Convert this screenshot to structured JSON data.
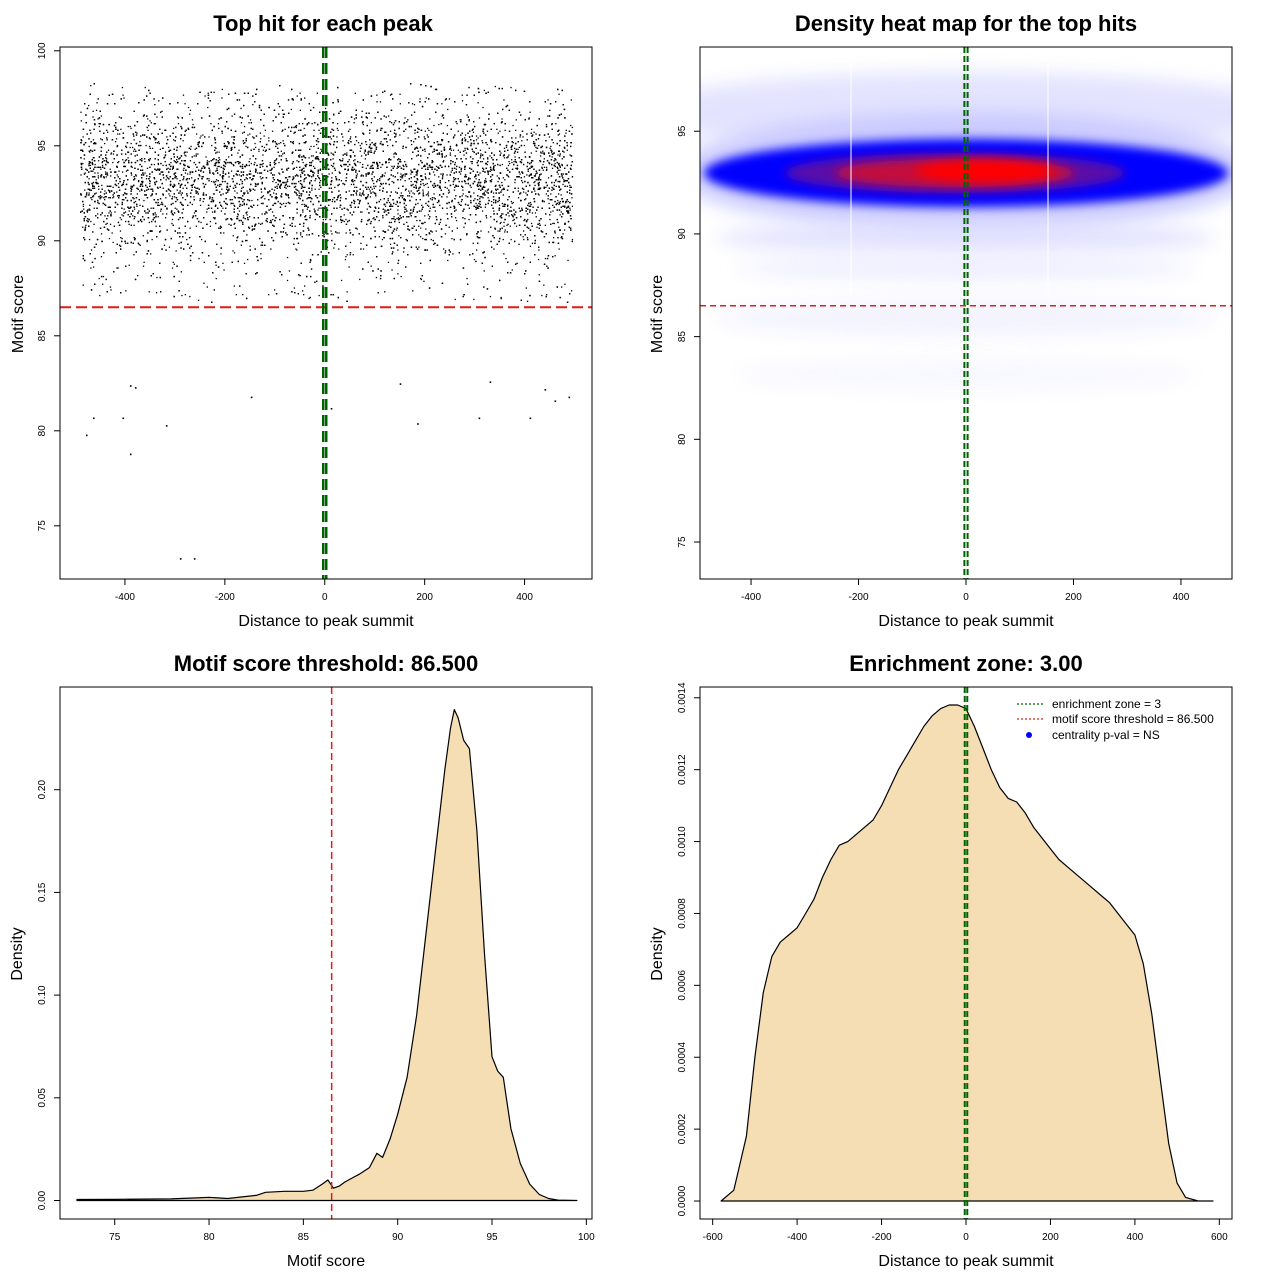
{
  "colors": {
    "threshold_line": "#e41a1c",
    "zone_line": "#006400",
    "density_fill": "#f5deb3",
    "heat_low": "#ffffff",
    "heat_mid": "#0000ff",
    "heat_high": "#ff0000",
    "point": "#000000",
    "legend_point": "#0000ff"
  },
  "chart_data": [
    {
      "id": "scatter",
      "type": "scatter",
      "title": "Top hit for each peak",
      "xlabel": "Distance to peak summit",
      "ylabel": "Motif score",
      "xlim": [
        -530,
        535
      ],
      "ylim": [
        72.2,
        100.2
      ],
      "xticks": [
        -400,
        -200,
        0,
        200,
        400
      ],
      "yticks": [
        75,
        80,
        85,
        90,
        95,
        100
      ],
      "x_range": [
        -490,
        495
      ],
      "score_center": 93.2,
      "score_spread": 1.8,
      "point_count": 9000,
      "outlier_points": [
        {
          "x": -290,
          "y": 73.3
        },
        {
          "x": -262,
          "y": 73.3
        },
        {
          "x": -390,
          "y": 78.8
        },
        {
          "x": -478,
          "y": 79.8
        },
        {
          "x": -318,
          "y": 80.3
        },
        {
          "x": -464,
          "y": 80.7
        },
        {
          "x": -405,
          "y": 80.7
        },
        {
          "x": 185,
          "y": 80.4
        },
        {
          "x": 308,
          "y": 80.7
        },
        {
          "x": 410,
          "y": 80.7
        },
        {
          "x": 460,
          "y": 81.6
        },
        {
          "x": 488,
          "y": 81.8
        },
        {
          "x": -148,
          "y": 81.8
        },
        {
          "x": 12,
          "y": 81.2
        },
        {
          "x": -390,
          "y": 82.4
        },
        {
          "x": -380,
          "y": 82.3
        },
        {
          "x": 150,
          "y": 82.5
        },
        {
          "x": 330,
          "y": 82.6
        },
        {
          "x": 440,
          "y": 82.2
        }
      ],
      "threshold": 86.5,
      "zone": [
        -3,
        3
      ]
    },
    {
      "id": "heatmap",
      "type": "heatmap",
      "title": "Density heat map for the top hits",
      "xlabel": "Distance to peak summit",
      "ylabel": "Motif score",
      "xlim": [
        -495,
        495
      ],
      "ylim": [
        73.2,
        99.1
      ],
      "xticks": [
        -400,
        -200,
        0,
        200,
        400
      ],
      "yticks": [
        75,
        80,
        85,
        90,
        95
      ],
      "density_center": {
        "x": 30,
        "y": 93.1
      },
      "threshold": 86.5,
      "zone": [
        -3,
        3
      ]
    },
    {
      "id": "score_density",
      "type": "area",
      "title": "Motif score threshold: 86.500",
      "xlabel": "Motif score",
      "ylabel": "Density",
      "xlim": [
        72.1,
        100.3
      ],
      "ylim": [
        -0.009,
        0.25
      ],
      "xticks": [
        75,
        80,
        85,
        90,
        95,
        100
      ],
      "yticks": [
        0.0,
        0.05,
        0.1,
        0.15,
        0.2
      ],
      "ytick_labels": [
        "0.00",
        "0.05",
        "0.10",
        "0.15",
        "0.20"
      ],
      "x": [
        73.0,
        75.0,
        78.0,
        80.0,
        81.0,
        82.0,
        82.5,
        83.0,
        84.0,
        85.0,
        85.5,
        86.0,
        86.3,
        86.6,
        86.9,
        87.2,
        87.6,
        88.0,
        88.5,
        88.9,
        89.2,
        89.6,
        90.0,
        90.5,
        91.0,
        91.5,
        92.0,
        92.5,
        92.8,
        93.0,
        93.2,
        93.5,
        93.8,
        94.2,
        94.6,
        95.0,
        95.3,
        95.6,
        96.0,
        96.5,
        97.0,
        97.5,
        98.0,
        98.5,
        99.5
      ],
      "y": [
        0.0005,
        0.0006,
        0.0008,
        0.0015,
        0.001,
        0.002,
        0.0025,
        0.004,
        0.0045,
        0.0045,
        0.005,
        0.008,
        0.01,
        0.006,
        0.007,
        0.009,
        0.011,
        0.013,
        0.016,
        0.023,
        0.021,
        0.03,
        0.042,
        0.06,
        0.09,
        0.13,
        0.17,
        0.21,
        0.23,
        0.239,
        0.235,
        0.224,
        0.22,
        0.18,
        0.12,
        0.07,
        0.063,
        0.06,
        0.035,
        0.018,
        0.008,
        0.003,
        0.001,
        0.0002,
        0.0
      ],
      "threshold": 86.5
    },
    {
      "id": "distance_density",
      "type": "area",
      "title": "Enrichment zone: 3.00",
      "xlabel": "Distance to peak summit",
      "ylabel": "Density",
      "xlim": [
        -630,
        630
      ],
      "ylim": [
        -5e-05,
        0.00143
      ],
      "xticks": [
        -600,
        -400,
        -200,
        0,
        200,
        400,
        600
      ],
      "yticks": [
        0.0,
        0.0002,
        0.0004,
        0.0006,
        0.0008,
        0.001,
        0.0012,
        0.0014
      ],
      "ytick_labels": [
        "0.0000",
        "0.0002",
        "0.0004",
        "0.0006",
        "0.0008",
        "0.0010",
        "0.0012",
        "0.0014"
      ],
      "x": [
        -580,
        -550,
        -520,
        -500,
        -480,
        -460,
        -440,
        -420,
        -400,
        -380,
        -360,
        -340,
        -320,
        -300,
        -280,
        -260,
        -240,
        -220,
        -200,
        -180,
        -160,
        -140,
        -120,
        -100,
        -80,
        -60,
        -40,
        -20,
        0,
        20,
        40,
        60,
        80,
        100,
        120,
        140,
        160,
        180,
        200,
        220,
        240,
        260,
        280,
        300,
        320,
        340,
        360,
        380,
        400,
        420,
        440,
        460,
        480,
        500,
        520,
        550,
        585
      ],
      "y": [
        0.0,
        3e-05,
        0.00018,
        0.0004,
        0.00058,
        0.00068,
        0.00072,
        0.00074,
        0.00076,
        0.0008,
        0.00084,
        0.0009,
        0.00095,
        0.00099,
        0.001,
        0.00102,
        0.00104,
        0.00106,
        0.0011,
        0.00115,
        0.0012,
        0.00124,
        0.00128,
        0.00132,
        0.00135,
        0.00137,
        0.00138,
        0.00138,
        0.00137,
        0.00132,
        0.00126,
        0.0012,
        0.00115,
        0.00112,
        0.00111,
        0.00108,
        0.00104,
        0.00101,
        0.00098,
        0.00095,
        0.00093,
        0.00091,
        0.00089,
        0.00087,
        0.00085,
        0.00083,
        0.0008,
        0.00077,
        0.00074,
        0.00066,
        0.00052,
        0.00034,
        0.00016,
        5e-05,
        1e-05,
        0.0,
        0.0
      ],
      "zone": [
        -3,
        3
      ],
      "legend": [
        {
          "label": "enrichment zone = 3",
          "style": "dotted",
          "color": "#006400"
        },
        {
          "label": "motif score threshold = 86.500",
          "style": "dotted",
          "color": "#e41a1c"
        },
        {
          "label": "centrality p-val = NS",
          "style": "point",
          "color": "#0000ff"
        }
      ]
    }
  ]
}
